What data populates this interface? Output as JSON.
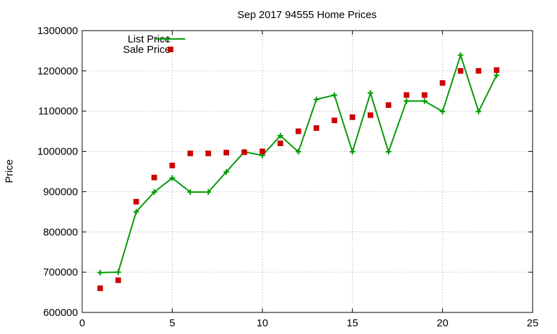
{
  "chart_data": {
    "type": "line",
    "title": "Sep 2017 94555 Home Prices",
    "xlabel": "",
    "ylabel": "Price",
    "xlim": [
      0,
      25
    ],
    "ylim": [
      600000,
      1300000
    ],
    "xticks": [
      0,
      5,
      10,
      15,
      20,
      25
    ],
    "yticks": [
      600000,
      700000,
      800000,
      900000,
      1000000,
      1100000,
      1200000,
      1300000
    ],
    "grid": true,
    "legend_position": "top-left",
    "series": [
      {
        "name": "List Price",
        "style": "line-with-plus-markers",
        "color": "#009900",
        "x": [
          1,
          2,
          3,
          4,
          5,
          6,
          7,
          8,
          9,
          10,
          11,
          12,
          13,
          14,
          15,
          16,
          17,
          18,
          19,
          20,
          21,
          22,
          23
        ],
        "y": [
          699000,
          700000,
          850000,
          899000,
          934000,
          899000,
          899000,
          949000,
          999000,
          990000,
          1039000,
          999000,
          1129000,
          1140000,
          999000,
          1145000,
          999000,
          1125000,
          1125000,
          1099000,
          1239000,
          1099000,
          1189000
        ]
      },
      {
        "name": "Sale Price",
        "style": "square-markers",
        "color": "#cc0000",
        "x": [
          1,
          2,
          3,
          4,
          5,
          6,
          7,
          8,
          9,
          10,
          11,
          12,
          13,
          14,
          15,
          16,
          17,
          18,
          19,
          20,
          21,
          22,
          23
        ],
        "y": [
          660000,
          680000,
          875000,
          935000,
          965000,
          995000,
          995000,
          997000,
          998000,
          1000000,
          1020000,
          1050000,
          1058000,
          1077000,
          1085000,
          1090000,
          1115000,
          1140000,
          1140000,
          1170000,
          1200000,
          1200000,
          1202000
        ]
      }
    ]
  }
}
